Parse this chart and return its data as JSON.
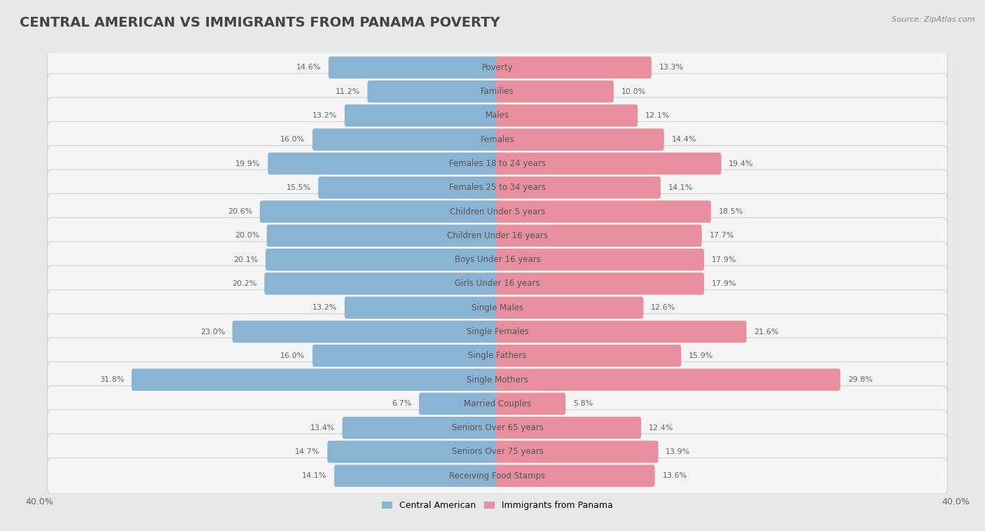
{
  "title": "CENTRAL AMERICAN VS IMMIGRANTS FROM PANAMA POVERTY",
  "source": "Source: ZipAtlas.com",
  "categories": [
    "Poverty",
    "Families",
    "Males",
    "Females",
    "Females 18 to 24 years",
    "Females 25 to 34 years",
    "Children Under 5 years",
    "Children Under 16 years",
    "Boys Under 16 years",
    "Girls Under 16 years",
    "Single Males",
    "Single Females",
    "Single Fathers",
    "Single Mothers",
    "Married Couples",
    "Seniors Over 65 years",
    "Seniors Over 75 years",
    "Receiving Food Stamps"
  ],
  "left_values": [
    14.6,
    11.2,
    13.2,
    16.0,
    19.9,
    15.5,
    20.6,
    20.0,
    20.1,
    20.2,
    13.2,
    23.0,
    16.0,
    31.8,
    6.7,
    13.4,
    14.7,
    14.1
  ],
  "right_values": [
    13.3,
    10.0,
    12.1,
    14.4,
    19.4,
    14.1,
    18.5,
    17.7,
    17.9,
    17.9,
    12.6,
    21.6,
    15.9,
    29.8,
    5.8,
    12.4,
    13.9,
    13.6
  ],
  "left_color": "#8ab4d4",
  "right_color": "#e8909f",
  "left_label": "Central American",
  "right_label": "Immigrants from Panama",
  "xlim": 40.0,
  "background_color": "#e8e8e8",
  "row_bg_color": "#f5f5f5",
  "row_border_color": "#d0d0d0",
  "title_fontsize": 14,
  "label_fontsize": 8.5,
  "value_fontsize": 8,
  "cat_label_color": "#555555",
  "value_label_color": "#666666"
}
